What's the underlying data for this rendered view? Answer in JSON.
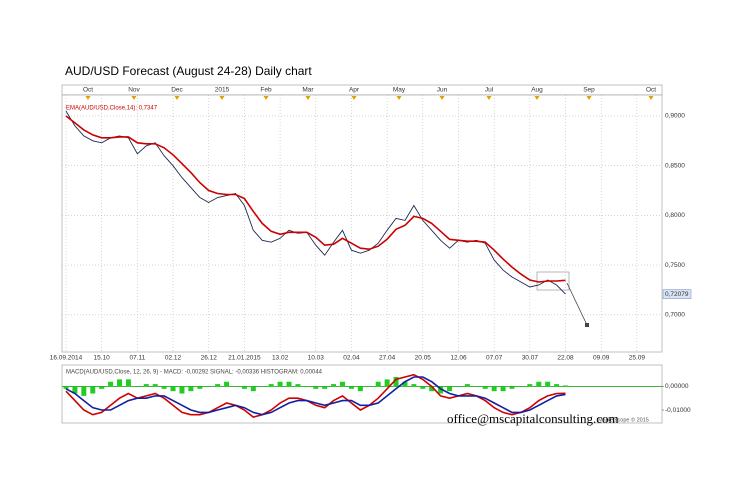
{
  "chart_data": [
    {
      "type": "line",
      "title": "AUD/USD Forecast (August 24-28) Daily chart",
      "top_labels": [
        "Oct",
        "Nov",
        "Dec",
        "2015",
        "Feb",
        "Mar",
        "Apr",
        "May",
        "Jun",
        "Jul",
        "Aug",
        "Sep",
        "Oct"
      ],
      "categories": [
        "16.09.2014",
        null,
        null,
        null,
        "15.10",
        null,
        null,
        null,
        "07.11",
        null,
        null,
        null,
        "02.12",
        null,
        null,
        null,
        "26.12",
        null,
        null,
        null,
        "21.01.2015",
        null,
        null,
        null,
        "13.02",
        null,
        null,
        null,
        "10.03",
        null,
        null,
        null,
        "02.04",
        null,
        null,
        null,
        "27.04",
        null,
        null,
        null,
        "20.05",
        null,
        null,
        null,
        "12.06",
        null,
        null,
        null,
        "07.07",
        null,
        null,
        null,
        "30.07",
        null,
        null,
        null,
        "22.08",
        null,
        null,
        null,
        "09.09",
        null,
        null,
        null,
        "25.09"
      ],
      "series": [
        {
          "color": "#1b2b4f",
          "values": [
            0.905,
            0.89,
            0.88,
            0.875,
            0.873,
            0.878,
            0.88,
            0.878,
            0.862,
            0.87,
            0.873,
            0.86,
            0.85,
            0.838,
            0.828,
            0.818,
            0.813,
            0.818,
            0.82,
            0.822,
            0.81,
            0.785,
            0.775,
            0.773,
            0.777,
            0.785,
            0.782,
            0.783,
            0.77,
            0.76,
            0.773,
            0.785,
            0.765,
            0.762,
            0.765,
            0.772,
            0.785,
            0.797,
            0.795,
            0.81,
            0.795,
            0.785,
            0.775,
            0.767,
            0.775,
            0.773,
            0.775,
            0.772,
            0.755,
            0.745,
            0.738,
            0.733,
            0.728,
            0.73,
            0.735,
            0.73,
            0.7208,
            null,
            null,
            null,
            null,
            null,
            null,
            null,
            null
          ]
        },
        {
          "name": "EMA(AUD/USD,Close,14): 0,7347",
          "color": "#cc0000",
          "values": [
            0.9,
            0.893,
            0.886,
            0.881,
            0.878,
            0.878,
            0.879,
            0.879,
            0.873,
            0.872,
            0.872,
            0.868,
            0.861,
            0.852,
            0.843,
            0.833,
            0.825,
            0.822,
            0.821,
            0.821,
            0.817,
            0.804,
            0.792,
            0.784,
            0.781,
            0.783,
            0.783,
            0.783,
            0.778,
            0.77,
            0.771,
            0.777,
            0.772,
            0.767,
            0.766,
            0.769,
            0.776,
            0.786,
            0.79,
            0.799,
            0.797,
            0.792,
            0.784,
            0.776,
            0.775,
            0.774,
            0.774,
            0.773,
            0.765,
            0.756,
            0.748,
            0.741,
            0.735,
            0.733,
            0.734,
            0.734,
            0.7347,
            null,
            null,
            null,
            null,
            null,
            null,
            null,
            null
          ]
        }
      ],
      "ylim": [
        0.6626,
        0.9211
      ],
      "yticks": [
        {
          "value": 0.9,
          "label": "0,9000"
        },
        {
          "value": 0.85,
          "label": "0,8500"
        },
        {
          "value": 0.8,
          "label": "0,8000"
        },
        {
          "value": 0.75,
          "label": "0,7500"
        },
        {
          "value": 0.7,
          "label": "0,7000"
        }
      ],
      "last_price": {
        "value": 0.72079,
        "label": "0,72079"
      },
      "grid": true
    },
    {
      "type": "line",
      "legend_text": "MACD(AUD/USD,Close, 12, 26, 9) - MACD: -0,00292   SIGNAL: -0,00336   HISTOGRAM: 0,00044",
      "series": [
        {
          "type": "bar",
          "color": "#22cc22",
          "values": [
            -0.001,
            -0.003,
            -0.004,
            -0.003,
            -0.001,
            0.002,
            0.003,
            0.003,
            0.0,
            0.001,
            0.001,
            -0.001,
            -0.002,
            -0.003,
            -0.002,
            -0.001,
            0.0,
            0.001,
            0.002,
            0.0,
            -0.001,
            -0.002,
            0.0,
            0.001,
            0.002,
            0.002,
            0.001,
            0.0,
            -0.001,
            -0.001,
            0.001,
            0.002,
            -0.001,
            -0.002,
            0.0,
            0.002,
            0.003,
            0.004,
            0.002,
            0.001,
            -0.001,
            -0.002,
            -0.003,
            -0.002,
            0.0,
            0.001,
            0.0,
            -0.001,
            -0.002,
            -0.002,
            -0.001,
            0.0,
            0.001,
            0.002,
            0.002,
            0.001,
            0.00044,
            null,
            null,
            null,
            null,
            null,
            null,
            null,
            null
          ]
        },
        {
          "type": "line",
          "color": "#d00000",
          "values": [
            -0.002,
            -0.006,
            -0.01,
            -0.012,
            -0.011,
            -0.008,
            -0.005,
            -0.003,
            -0.005,
            -0.004,
            -0.003,
            -0.005,
            -0.008,
            -0.011,
            -0.012,
            -0.012,
            -0.011,
            -0.009,
            -0.007,
            -0.008,
            -0.01,
            -0.013,
            -0.012,
            -0.01,
            -0.007,
            -0.005,
            -0.005,
            -0.006,
            -0.008,
            -0.009,
            -0.006,
            -0.004,
            -0.007,
            -0.01,
            -0.008,
            -0.005,
            -0.001,
            0.003,
            0.004,
            0.005,
            0.003,
            0.0,
            -0.004,
            -0.005,
            -0.004,
            -0.003,
            -0.004,
            -0.006,
            -0.009,
            -0.011,
            -0.012,
            -0.011,
            -0.009,
            -0.006,
            -0.004,
            -0.003,
            -0.00292,
            null,
            null,
            null,
            null,
            null,
            null,
            null,
            null
          ]
        },
        {
          "type": "line",
          "color": "#1020a0",
          "values": [
            -0.001,
            -0.003,
            -0.006,
            -0.009,
            -0.01,
            -0.01,
            -0.008,
            -0.006,
            -0.005,
            -0.005,
            -0.004,
            -0.004,
            -0.006,
            -0.008,
            -0.01,
            -0.011,
            -0.011,
            -0.01,
            -0.009,
            -0.008,
            -0.009,
            -0.011,
            -0.012,
            -0.011,
            -0.009,
            -0.007,
            -0.006,
            -0.006,
            -0.007,
            -0.008,
            -0.007,
            -0.006,
            -0.006,
            -0.008,
            -0.008,
            -0.007,
            -0.004,
            -0.001,
            0.002,
            0.004,
            0.004,
            0.002,
            -0.001,
            -0.003,
            -0.004,
            -0.004,
            -0.004,
            -0.005,
            -0.007,
            -0.009,
            -0.011,
            -0.011,
            -0.01,
            -0.008,
            -0.006,
            -0.004,
            -0.00336,
            null,
            null,
            null,
            null,
            null,
            null,
            null,
            null
          ]
        }
      ],
      "ylim": [
        -0.0155,
        0.0091
      ],
      "yticks": [
        {
          "value": 0,
          "label": "0,00000"
        },
        {
          "value": -0.01,
          "label": "-0,01000"
        }
      ],
      "zero_line_color": "#22aa22"
    }
  ],
  "watermark": "office@mscapitalconsulting.com",
  "footer": "Marketscope © 2015"
}
